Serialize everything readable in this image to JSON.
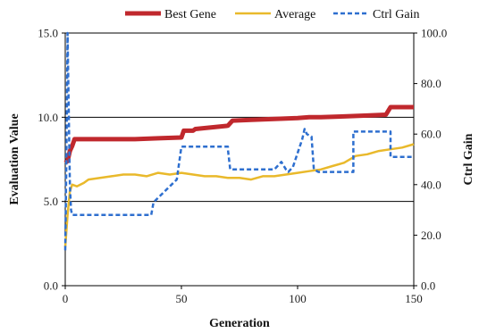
{
  "chart_data": {
    "type": "line",
    "title": "",
    "xlabel": "Generation",
    "ylabel_left": "Evaluation Value",
    "ylabel_right": "Ctrl Gain",
    "xlim": [
      0,
      150
    ],
    "ylim_left": [
      0.0,
      15.0
    ],
    "ylim_right": [
      0.0,
      100.0
    ],
    "x_ticks": [
      "0",
      "50",
      "100",
      "150"
    ],
    "y_left_ticks": [
      "0.0",
      "5.0",
      "10.0",
      "15.0"
    ],
    "y_right_ticks": [
      "0.0",
      "20.0",
      "40.0",
      "60.0",
      "80.0",
      "100.0"
    ],
    "y_left_tick_values": [
      0,
      5,
      10,
      15
    ],
    "y_right_tick_values": [
      0,
      20,
      40,
      60,
      80,
      100
    ],
    "x_tick_values": [
      0,
      50,
      100,
      150
    ],
    "gridlines_left": [
      5,
      10
    ],
    "legend_position": "top",
    "series": [
      {
        "name": "Best Gene",
        "axis": "left",
        "color": "#c0282d",
        "style": "solid",
        "x": [
          0,
          1,
          2,
          3,
          4,
          5,
          10,
          20,
          30,
          40,
          50,
          51,
          55,
          56,
          70,
          72,
          80,
          90,
          100,
          105,
          110,
          120,
          130,
          138,
          140,
          150
        ],
        "y": [
          7.3,
          7.4,
          8.0,
          8.3,
          8.7,
          8.7,
          8.7,
          8.7,
          8.7,
          8.75,
          8.8,
          9.2,
          9.2,
          9.3,
          9.5,
          9.8,
          9.85,
          9.9,
          9.95,
          10.0,
          10.0,
          10.05,
          10.1,
          10.15,
          10.6,
          10.6
        ]
      },
      {
        "name": "Average",
        "axis": "left",
        "color": "#e9b92b",
        "style": "solid",
        "x": [
          0,
          1,
          2,
          3,
          5,
          8,
          10,
          15,
          20,
          25,
          30,
          35,
          40,
          45,
          50,
          55,
          60,
          65,
          70,
          75,
          80,
          85,
          90,
          95,
          100,
          105,
          110,
          115,
          120,
          125,
          130,
          135,
          140,
          145,
          150
        ],
        "y": [
          2.3,
          4.2,
          5.6,
          6.0,
          5.9,
          6.1,
          6.3,
          6.4,
          6.5,
          6.6,
          6.6,
          6.5,
          6.7,
          6.6,
          6.7,
          6.6,
          6.5,
          6.5,
          6.4,
          6.4,
          6.3,
          6.5,
          6.5,
          6.6,
          6.7,
          6.8,
          6.9,
          7.1,
          7.3,
          7.7,
          7.8,
          8.0,
          8.1,
          8.2,
          8.4
        ]
      },
      {
        "name": "Ctrl Gain",
        "axis": "right",
        "color": "#2e6fcf",
        "style": "dashed",
        "x": [
          0,
          0.5,
          1,
          1.5,
          2,
          2.5,
          3,
          37,
          37,
          38,
          48,
          48,
          50,
          70,
          70,
          71,
          86,
          86,
          90,
          91,
          91,
          93,
          93,
          95,
          96,
          96,
          98,
          98,
          102,
          102,
          103,
          104,
          106,
          107,
          107,
          109,
          109,
          124,
          124,
          140,
          140,
          150
        ],
        "y": [
          14,
          50,
          100,
          70,
          40,
          30,
          28,
          28,
          28,
          33,
          42,
          42,
          55,
          55,
          54,
          46,
          46,
          46,
          46,
          47,
          47,
          49,
          49,
          46,
          45,
          45,
          47,
          47,
          58,
          58,
          62,
          60,
          59,
          46,
          46,
          45,
          45,
          45,
          61,
          61,
          51,
          51
        ]
      }
    ]
  }
}
